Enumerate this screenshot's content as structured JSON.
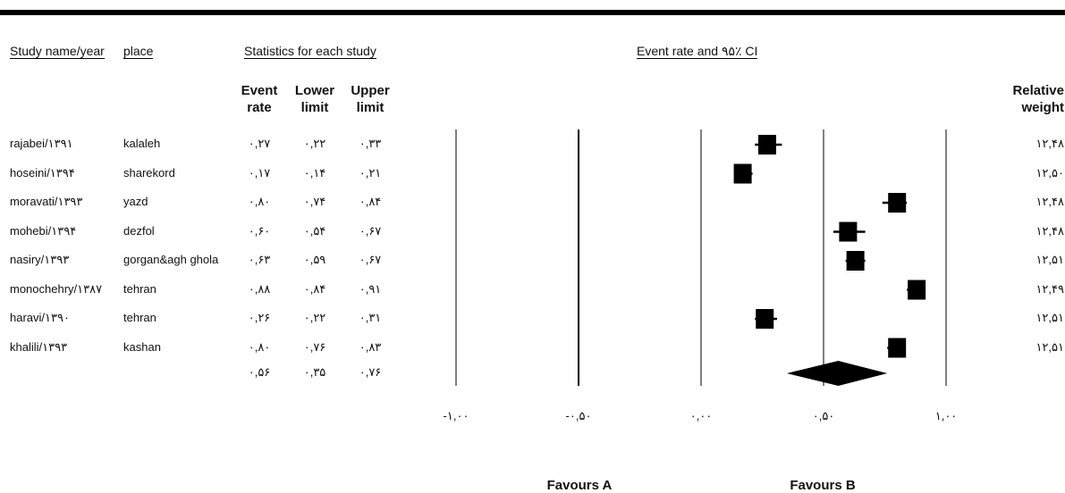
{
  "header": {
    "study_label": "Study name/year",
    "place_label": "place",
    "stats_label": "Statistics for each study",
    "ci_label": "Event rate and ۹۵٪ CI",
    "event_rate_label": [
      "Event",
      "rate"
    ],
    "lower_label": [
      "Lower",
      "limit"
    ],
    "upper_label": [
      "Upper",
      "limit"
    ],
    "weight_label": [
      "Relative",
      "weight"
    ]
  },
  "rows": [
    {
      "study": "rajabei/۱۳۹۱",
      "place": "kalaleh",
      "rate": "۰,۲۷",
      "lower": "۰,۲۲",
      "upper": "۰,۳۳",
      "weight": "۱۲,۴۸"
    },
    {
      "study": "hoseini/۱۳۹۴",
      "place": "sharekord",
      "rate": "۰,۱۷",
      "lower": "۰,۱۴",
      "upper": "۰,۲۱",
      "weight": "۱۲,۵۰"
    },
    {
      "study": "moravati/۱۳۹۳",
      "place": "yazd",
      "rate": "۰,۸۰",
      "lower": "۰,۷۴",
      "upper": "۰,۸۴",
      "weight": "۱۲,۴۸"
    },
    {
      "study": "mohebi/۱۳۹۴",
      "place": "dezfol",
      "rate": "۰,۶۰",
      "lower": "۰,۵۴",
      "upper": "۰,۶۷",
      "weight": "۱۲,۴۸"
    },
    {
      "study": "nasiry/۱۳۹۳",
      "place": "gorgan&agh ghola",
      "rate": "۰,۶۳",
      "lower": "۰,۵۹",
      "upper": "۰,۶۷",
      "weight": "۱۲,۵۱"
    },
    {
      "study": "monochehry/۱۳۸۷",
      "place": "tehran",
      "rate": "۰,۸۸",
      "lower": "۰,۸۴",
      "upper": "۰,۹۱",
      "weight": "۱۲,۴۹"
    },
    {
      "study": "haravi/۱۳۹۰",
      "place": "tehran",
      "rate": "۰,۲۶",
      "lower": "۰,۲۲",
      "upper": "۰,۳۱",
      "weight": "۱۲,۵۱"
    },
    {
      "study": "khalili/۱۳۹۳",
      "place": "kashan",
      "rate": "۰,۸۰",
      "lower": "۰,۷۶",
      "upper": "۰,۸۳",
      "weight": "۱۲,۵۱"
    }
  ],
  "summary": {
    "rate": "۰,۵۶",
    "lower": "۰,۳۵",
    "upper": "۰,۷۶"
  },
  "favours": {
    "left": "Favours A",
    "right": "Favours B"
  },
  "chart_data": {
    "type": "scatter",
    "subtype": "forest-plot",
    "title": "Event rate and ۹۵٪ CI",
    "xlim": [
      -1.0,
      1.0
    ],
    "x_ticks": [
      -1.0,
      -0.5,
      0.0,
      0.5,
      1.0
    ],
    "x_tick_labels": [
      "-۱,۰۰",
      "-۰,۵۰",
      "۰,۰۰",
      "۰,۵۰",
      "۱,۰۰"
    ],
    "gridlines": true,
    "studies": [
      {
        "estimate": 0.27,
        "lower": 0.22,
        "upper": 0.33
      },
      {
        "estimate": 0.17,
        "lower": 0.14,
        "upper": 0.21
      },
      {
        "estimate": 0.8,
        "lower": 0.74,
        "upper": 0.84
      },
      {
        "estimate": 0.6,
        "lower": 0.54,
        "upper": 0.67
      },
      {
        "estimate": 0.63,
        "lower": 0.59,
        "upper": 0.67
      },
      {
        "estimate": 0.88,
        "lower": 0.84,
        "upper": 0.91
      },
      {
        "estimate": 0.26,
        "lower": 0.22,
        "upper": 0.31
      },
      {
        "estimate": 0.8,
        "lower": 0.76,
        "upper": 0.83
      }
    ],
    "summary": {
      "estimate": 0.56,
      "lower": 0.35,
      "upper": 0.76
    },
    "marker_color": "#000000"
  }
}
